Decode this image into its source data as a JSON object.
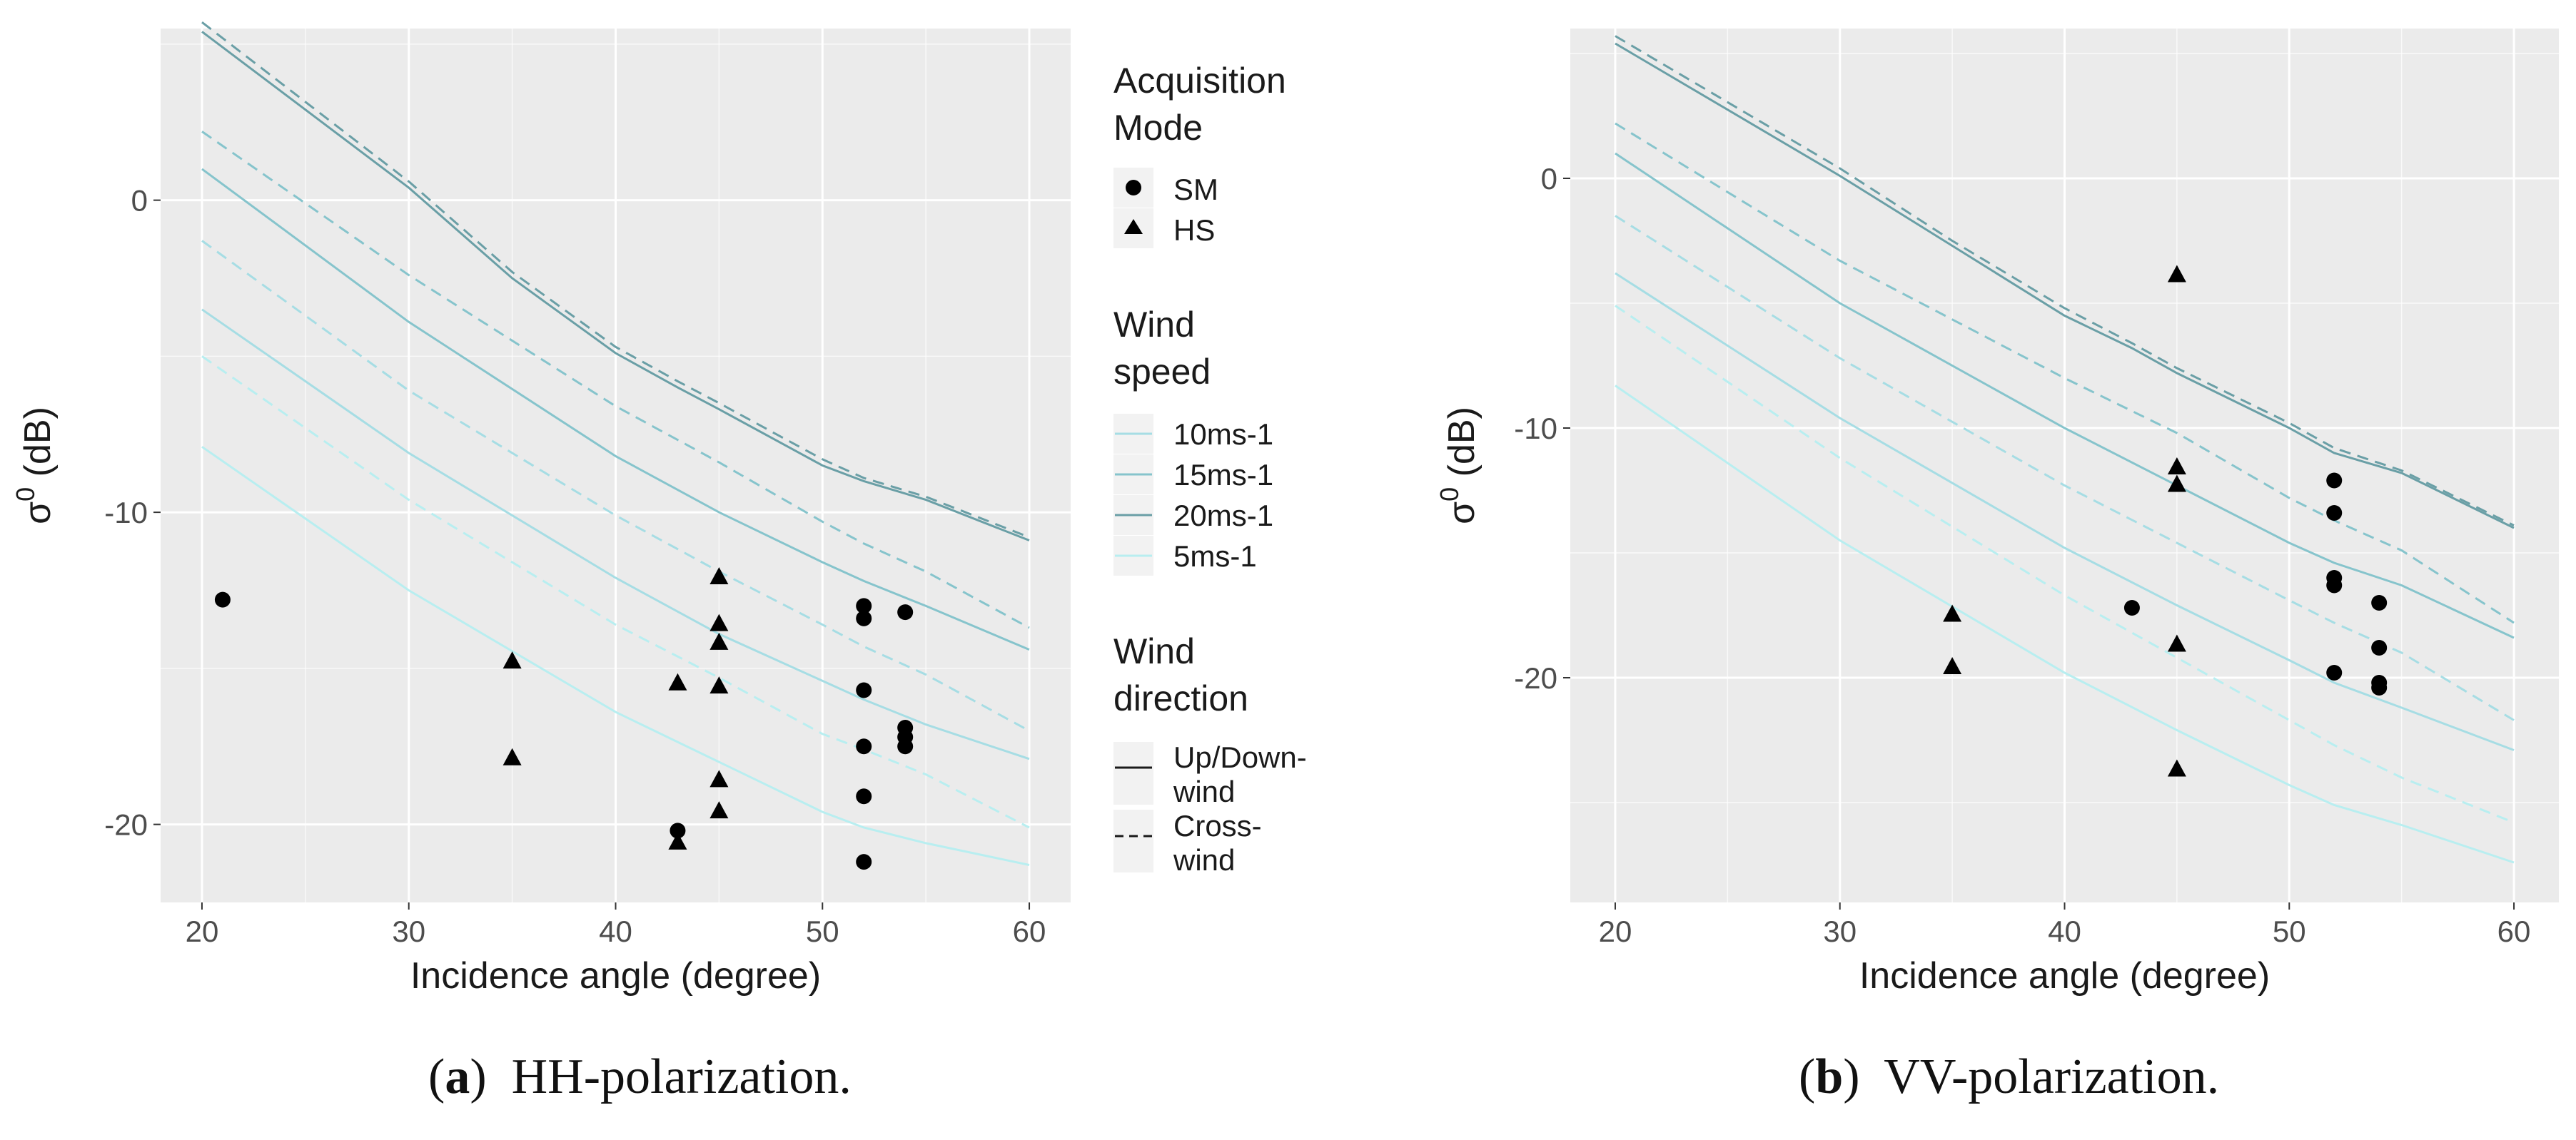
{
  "captions": [
    {
      "label": "a",
      "text": "HH-polarization."
    },
    {
      "label": "b",
      "text": "VV-polarization."
    }
  ],
  "legend": {
    "acquisition_mode": {
      "title_line1": "Acquisition",
      "title_line2": "Mode",
      "items": [
        "SM",
        "HS"
      ]
    },
    "wind_speed": {
      "title_line1": "Wind",
      "title_line2": "speed",
      "items": [
        "10ms-1",
        "15ms-1",
        "20ms-1",
        "5ms-1"
      ]
    },
    "wind_direction": {
      "title_line1": "Wind",
      "title_line2": "direction",
      "items": [
        {
          "line1": "Up/Down-",
          "line2": "wind"
        },
        {
          "line1": "Cross-",
          "line2": "wind"
        }
      ]
    }
  },
  "colors": {
    "panel": "#ebebeb",
    "grid": "#ffffff",
    "wind_5": "#b8eef0",
    "wind_10": "#a6dde4",
    "wind_15": "#86c4cc",
    "wind_20": "#6a9fa6",
    "points": "#000000"
  },
  "chart_data": [
    {
      "id": "hh",
      "type": "scatter",
      "title": "(a) HH-polarization.",
      "xlabel": "Incidence angle (degree)",
      "ylabel": "σ0 (dB)",
      "xlim": [
        18,
        62
      ],
      "ylim": [
        -22.5,
        5.5
      ],
      "xticks": [
        20,
        30,
        40,
        50,
        60
      ],
      "yticks": [
        0,
        -10,
        -20
      ],
      "curves": [
        {
          "wind": "20ms-1",
          "dir": "Up/Down-wind",
          "x": [
            20,
            30,
            35,
            40,
            43,
            45,
            50,
            52,
            55,
            60
          ],
          "y": [
            5.4,
            0.4,
            -2.5,
            -4.9,
            -6.0,
            -6.7,
            -8.5,
            -9.0,
            -9.6,
            -10.9
          ]
        },
        {
          "wind": "20ms-1",
          "dir": "Cross-wind",
          "x": [
            20,
            30,
            35,
            40,
            43,
            45,
            50,
            52,
            55,
            60
          ],
          "y": [
            5.7,
            0.6,
            -2.3,
            -4.7,
            -5.8,
            -6.5,
            -8.3,
            -8.9,
            -9.5,
            -10.8
          ]
        },
        {
          "wind": "15ms-1",
          "dir": "Cross-wind",
          "x": [
            20,
            30,
            40,
            45,
            50,
            52,
            55,
            60
          ],
          "y": [
            2.2,
            -2.4,
            -6.6,
            -8.4,
            -10.3,
            -11.0,
            -11.9,
            -13.7
          ]
        },
        {
          "wind": "15ms-1",
          "dir": "Up/Down-wind",
          "x": [
            20,
            30,
            40,
            45,
            50,
            52,
            55,
            60
          ],
          "y": [
            1.0,
            -3.9,
            -8.2,
            -10.0,
            -11.6,
            -12.2,
            -13.0,
            -14.4
          ]
        },
        {
          "wind": "10ms-1",
          "dir": "Cross-wind",
          "x": [
            20,
            30,
            40,
            45,
            50,
            52,
            55,
            60
          ],
          "y": [
            -1.3,
            -6.1,
            -10.1,
            -11.9,
            -13.6,
            -14.3,
            -15.2,
            -17.0
          ]
        },
        {
          "wind": "10ms-1",
          "dir": "Up/Down-wind",
          "x": [
            20,
            30,
            40,
            45,
            50,
            52,
            55,
            60
          ],
          "y": [
            -3.5,
            -8.1,
            -12.1,
            -13.9,
            -15.4,
            -16.0,
            -16.8,
            -17.9
          ]
        },
        {
          "wind": "5ms-1",
          "dir": "Cross-wind",
          "x": [
            20,
            30,
            40,
            45,
            50,
            52,
            55,
            60
          ],
          "y": [
            -5.0,
            -9.6,
            -13.6,
            -15.3,
            -17.1,
            -17.6,
            -18.4,
            -20.1
          ]
        },
        {
          "wind": "5ms-1",
          "dir": "Up/Down-wind",
          "x": [
            20,
            30,
            40,
            45,
            50,
            52,
            55,
            60
          ],
          "y": [
            -7.9,
            -12.5,
            -16.4,
            -18.0,
            -19.6,
            -20.1,
            -20.6,
            -21.3
          ]
        }
      ],
      "points": [
        {
          "mode": "SM",
          "x": 21,
          "y": -12.8
        },
        {
          "mode": "SM",
          "x": 43,
          "y": -20.2
        },
        {
          "mode": "SM",
          "x": 52,
          "y": -13.0
        },
        {
          "mode": "SM",
          "x": 52,
          "y": -13.4
        },
        {
          "mode": "SM",
          "x": 52,
          "y": -15.7
        },
        {
          "mode": "SM",
          "x": 52,
          "y": -17.5
        },
        {
          "mode": "SM",
          "x": 52,
          "y": -19.1
        },
        {
          "mode": "SM",
          "x": 52,
          "y": -21.2
        },
        {
          "mode": "SM",
          "x": 54,
          "y": -13.2
        },
        {
          "mode": "SM",
          "x": 54,
          "y": -16.9
        },
        {
          "mode": "SM",
          "x": 54,
          "y": -17.2
        },
        {
          "mode": "SM",
          "x": 54,
          "y": -17.5
        },
        {
          "mode": "HS",
          "x": 35,
          "y": -14.8
        },
        {
          "mode": "HS",
          "x": 35,
          "y": -17.9
        },
        {
          "mode": "HS",
          "x": 43,
          "y": -15.5
        },
        {
          "mode": "HS",
          "x": 43,
          "y": -20.6
        },
        {
          "mode": "HS",
          "x": 45,
          "y": -12.1
        },
        {
          "mode": "HS",
          "x": 45,
          "y": -13.6
        },
        {
          "mode": "HS",
          "x": 45,
          "y": -14.2
        },
        {
          "mode": "HS",
          "x": 45,
          "y": -15.6
        },
        {
          "mode": "HS",
          "x": 45,
          "y": -18.6
        },
        {
          "mode": "HS",
          "x": 45,
          "y": -19.6
        }
      ]
    },
    {
      "id": "vv",
      "type": "scatter",
      "title": "(b) VV-polarization.",
      "xlabel": "Incidence angle (degree)",
      "ylabel": "σ0 (dB)",
      "xlim": [
        18,
        62
      ],
      "ylim": [
        -29,
        6
      ],
      "xticks": [
        20,
        30,
        40,
        50,
        60
      ],
      "yticks": [
        0,
        -10,
        -20
      ],
      "curves": [
        {
          "wind": "20ms-1",
          "dir": "Up/Down-wind",
          "x": [
            20,
            30,
            35,
            40,
            43,
            45,
            50,
            52,
            55,
            60
          ],
          "y": [
            5.4,
            0.1,
            -2.7,
            -5.5,
            -6.8,
            -7.8,
            -10.0,
            -11.0,
            -11.8,
            -14.0
          ]
        },
        {
          "wind": "20ms-1",
          "dir": "Cross-wind",
          "x": [
            20,
            30,
            35,
            40,
            43,
            45,
            50,
            52,
            55,
            60
          ],
          "y": [
            5.7,
            0.4,
            -2.5,
            -5.2,
            -6.6,
            -7.6,
            -9.8,
            -10.8,
            -11.7,
            -13.9
          ]
        },
        {
          "wind": "15ms-1",
          "dir": "Cross-wind",
          "x": [
            20,
            30,
            40,
            45,
            50,
            52,
            55,
            60
          ],
          "y": [
            2.2,
            -3.3,
            -8.0,
            -10.2,
            -12.8,
            -13.7,
            -14.9,
            -17.8
          ]
        },
        {
          "wind": "15ms-1",
          "dir": "Up/Down-wind",
          "x": [
            20,
            30,
            40,
            45,
            50,
            52,
            55,
            60
          ],
          "y": [
            1.0,
            -5.0,
            -10.0,
            -12.3,
            -14.6,
            -15.4,
            -16.3,
            -18.4
          ]
        },
        {
          "wind": "10ms-1",
          "dir": "Cross-wind",
          "x": [
            20,
            30,
            40,
            45,
            50,
            52,
            55,
            60
          ],
          "y": [
            -1.5,
            -7.2,
            -12.3,
            -14.6,
            -16.9,
            -17.8,
            -19.0,
            -21.7
          ]
        },
        {
          "wind": "10ms-1",
          "dir": "Up/Down-wind",
          "x": [
            20,
            30,
            40,
            45,
            50,
            52,
            55,
            60
          ],
          "y": [
            -3.8,
            -9.6,
            -14.8,
            -17.1,
            -19.3,
            -20.2,
            -21.2,
            -22.9
          ]
        },
        {
          "wind": "5ms-1",
          "dir": "Cross-wind",
          "x": [
            20,
            30,
            40,
            45,
            50,
            52,
            55,
            60
          ],
          "y": [
            -5.1,
            -11.2,
            -16.7,
            -19.2,
            -21.7,
            -22.7,
            -24.0,
            -25.8
          ]
        },
        {
          "wind": "5ms-1",
          "dir": "Up/Down-wind",
          "x": [
            20,
            30,
            40,
            45,
            50,
            52,
            55,
            60
          ],
          "y": [
            -8.3,
            -14.5,
            -19.8,
            -22.1,
            -24.3,
            -25.1,
            -25.9,
            -27.4
          ]
        }
      ],
      "points": [
        {
          "mode": "SM",
          "x": 43,
          "y": -17.2
        },
        {
          "mode": "SM",
          "x": 52,
          "y": -12.1
        },
        {
          "mode": "SM",
          "x": 52,
          "y": -13.4
        },
        {
          "mode": "SM",
          "x": 52,
          "y": -16.0
        },
        {
          "mode": "SM",
          "x": 52,
          "y": -16.3
        },
        {
          "mode": "SM",
          "x": 52,
          "y": -19.8
        },
        {
          "mode": "SM",
          "x": 54,
          "y": -17.0
        },
        {
          "mode": "SM",
          "x": 54,
          "y": -18.8
        },
        {
          "mode": "SM",
          "x": 54,
          "y": -20.2
        },
        {
          "mode": "SM",
          "x": 54,
          "y": -20.4
        },
        {
          "mode": "HS",
          "x": 35,
          "y": -17.5
        },
        {
          "mode": "HS",
          "x": 35,
          "y": -19.6
        },
        {
          "mode": "HS",
          "x": 45,
          "y": -3.9
        },
        {
          "mode": "HS",
          "x": 45,
          "y": -11.6
        },
        {
          "mode": "HS",
          "x": 45,
          "y": -12.3
        },
        {
          "mode": "HS",
          "x": 45,
          "y": -18.7
        },
        {
          "mode": "HS",
          "x": 45,
          "y": -23.7
        }
      ]
    }
  ]
}
